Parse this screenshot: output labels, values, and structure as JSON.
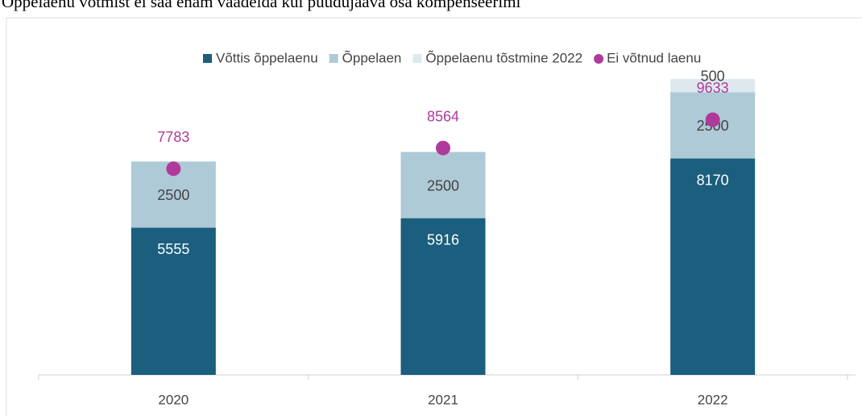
{
  "caption": "Õppelaenu võtmist ei saa enam vaadelda kui puudujääva osa kompenseerimi",
  "chart_data": {
    "type": "bar",
    "stacked": true,
    "categories": [
      "2020",
      "2021",
      "2022"
    ],
    "ylim": [
      0,
      11200
    ],
    "series": [
      {
        "name": "Võttis õppelaenu",
        "color": "#1b5e7e",
        "values": [
          5555,
          5916,
          8170
        ]
      },
      {
        "name": "Õppelaen",
        "color": "#aecad6",
        "values": [
          2500,
          2500,
          2500
        ]
      },
      {
        "name": "Õppelaenu tõstmine 2022",
        "color": "#dde9ee",
        "values": [
          null,
          null,
          500
        ]
      },
      {
        "name": "Ei võtnud laenu",
        "type": "scatter",
        "color": "#b03a9b",
        "values": [
          7783,
          8564,
          9633
        ]
      }
    ]
  }
}
